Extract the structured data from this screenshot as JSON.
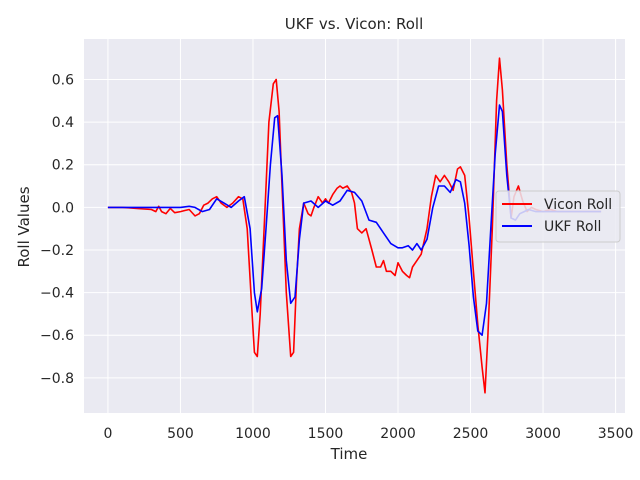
{
  "chart_data": {
    "type": "line",
    "title": "UKF vs. Vicon: Roll",
    "xlabel": "Time",
    "ylabel": "Roll Values",
    "xlim": [
      -165,
      3565
    ],
    "ylim": [
      -0.965,
      0.79
    ],
    "xticks": [
      0,
      500,
      1000,
      1500,
      2000,
      2500,
      3000,
      3500
    ],
    "yticks": [
      -0.8,
      -0.6,
      -0.4,
      -0.2,
      0.0,
      0.2,
      0.4,
      0.6
    ],
    "xtick_labels": [
      "0",
      "500",
      "1000",
      "1500",
      "2000",
      "2500",
      "3000",
      "3500"
    ],
    "ytick_labels": [
      "−0.8",
      "−0.6",
      "−0.4",
      "−0.2",
      "0.0",
      "0.2",
      "0.4",
      "0.6"
    ],
    "grid": true,
    "background": "#eaeaf2",
    "legend_position": "center-right",
    "series": [
      {
        "name": "Vicon Roll",
        "color": "#ff0000",
        "x": [
          0,
          100,
          200,
          300,
          330,
          350,
          370,
          400,
          430,
          460,
          500,
          530,
          560,
          600,
          630,
          660,
          690,
          720,
          750,
          780,
          820,
          860,
          900,
          930,
          960,
          990,
          1010,
          1030,
          1050,
          1080,
          1110,
          1140,
          1160,
          1180,
          1200,
          1230,
          1260,
          1280,
          1300,
          1320,
          1350,
          1380,
          1400,
          1420,
          1450,
          1480,
          1500,
          1520,
          1550,
          1580,
          1600,
          1620,
          1650,
          1680,
          1700,
          1720,
          1750,
          1780,
          1800,
          1820,
          1850,
          1880,
          1900,
          1920,
          1950,
          1980,
          2000,
          2030,
          2060,
          2080,
          2100,
          2130,
          2160,
          2200,
          2230,
          2260,
          2290,
          2320,
          2350,
          2380,
          2410,
          2430,
          2460,
          2490,
          2520,
          2550,
          2580,
          2600,
          2620,
          2650,
          2680,
          2700,
          2720,
          2750,
          2780,
          2800,
          2830,
          2860,
          2890,
          2920,
          2950,
          3000,
          3050,
          3100,
          3200,
          3300,
          3400
        ],
        "y": [
          0.0,
          0.0,
          -0.005,
          -0.01,
          -0.02,
          0.005,
          -0.02,
          -0.03,
          -0.005,
          -0.025,
          -0.02,
          -0.015,
          -0.01,
          -0.04,
          -0.03,
          0.01,
          0.02,
          0.04,
          0.05,
          0.02,
          0.0,
          0.02,
          0.05,
          0.04,
          -0.1,
          -0.45,
          -0.68,
          -0.7,
          -0.5,
          -0.05,
          0.4,
          0.58,
          0.6,
          0.45,
          0.1,
          -0.4,
          -0.7,
          -0.68,
          -0.35,
          -0.1,
          0.02,
          -0.03,
          -0.04,
          0.0,
          0.05,
          0.02,
          0.04,
          0.02,
          0.06,
          0.09,
          0.1,
          0.09,
          0.1,
          0.07,
          0.02,
          -0.1,
          -0.12,
          -0.1,
          -0.15,
          -0.2,
          -0.28,
          -0.28,
          -0.25,
          -0.3,
          -0.3,
          -0.32,
          -0.26,
          -0.3,
          -0.32,
          -0.33,
          -0.28,
          -0.25,
          -0.22,
          -0.1,
          0.05,
          0.15,
          0.12,
          0.15,
          0.12,
          0.08,
          0.18,
          0.19,
          0.15,
          -0.05,
          -0.3,
          -0.55,
          -0.75,
          -0.87,
          -0.6,
          -0.1,
          0.5,
          0.7,
          0.55,
          0.2,
          -0.05,
          0.05,
          0.1,
          0.03,
          -0.02,
          0.0,
          -0.01,
          -0.02,
          -0.01,
          -0.02,
          -0.02,
          -0.02,
          -0.02
        ]
      },
      {
        "name": "UKF Roll",
        "color": "#0000ff",
        "x": [
          0,
          100,
          200,
          300,
          400,
          500,
          560,
          600,
          650,
          700,
          750,
          800,
          850,
          900,
          940,
          980,
          1010,
          1030,
          1060,
          1090,
          1120,
          1150,
          1170,
          1200,
          1230,
          1260,
          1290,
          1320,
          1350,
          1400,
          1450,
          1500,
          1550,
          1600,
          1650,
          1700,
          1750,
          1800,
          1850,
          1900,
          1950,
          2000,
          2030,
          2070,
          2100,
          2130,
          2160,
          2200,
          2240,
          2280,
          2320,
          2360,
          2400,
          2430,
          2460,
          2490,
          2520,
          2550,
          2580,
          2610,
          2640,
          2670,
          2700,
          2720,
          2750,
          2780,
          2810,
          2840,
          2870,
          2900,
          2950,
          3000,
          3100,
          3200,
          3300,
          3400
        ],
        "y": [
          0.0,
          0.0,
          0.0,
          0.0,
          0.0,
          0.0,
          0.005,
          0.0,
          -0.02,
          -0.01,
          0.04,
          0.02,
          0.0,
          0.03,
          0.05,
          -0.1,
          -0.4,
          -0.49,
          -0.38,
          -0.1,
          0.2,
          0.42,
          0.43,
          0.15,
          -0.25,
          -0.45,
          -0.42,
          -0.15,
          0.02,
          0.03,
          0.0,
          0.03,
          0.01,
          0.03,
          0.08,
          0.07,
          0.03,
          -0.06,
          -0.07,
          -0.12,
          -0.17,
          -0.19,
          -0.19,
          -0.18,
          -0.2,
          -0.17,
          -0.2,
          -0.15,
          0.0,
          0.1,
          0.1,
          0.07,
          0.13,
          0.12,
          0.02,
          -0.18,
          -0.42,
          -0.58,
          -0.6,
          -0.45,
          -0.1,
          0.25,
          0.48,
          0.45,
          0.15,
          -0.05,
          -0.06,
          -0.03,
          -0.02,
          -0.01,
          -0.02,
          -0.02,
          -0.02,
          -0.02,
          -0.02,
          -0.02
        ]
      }
    ]
  }
}
